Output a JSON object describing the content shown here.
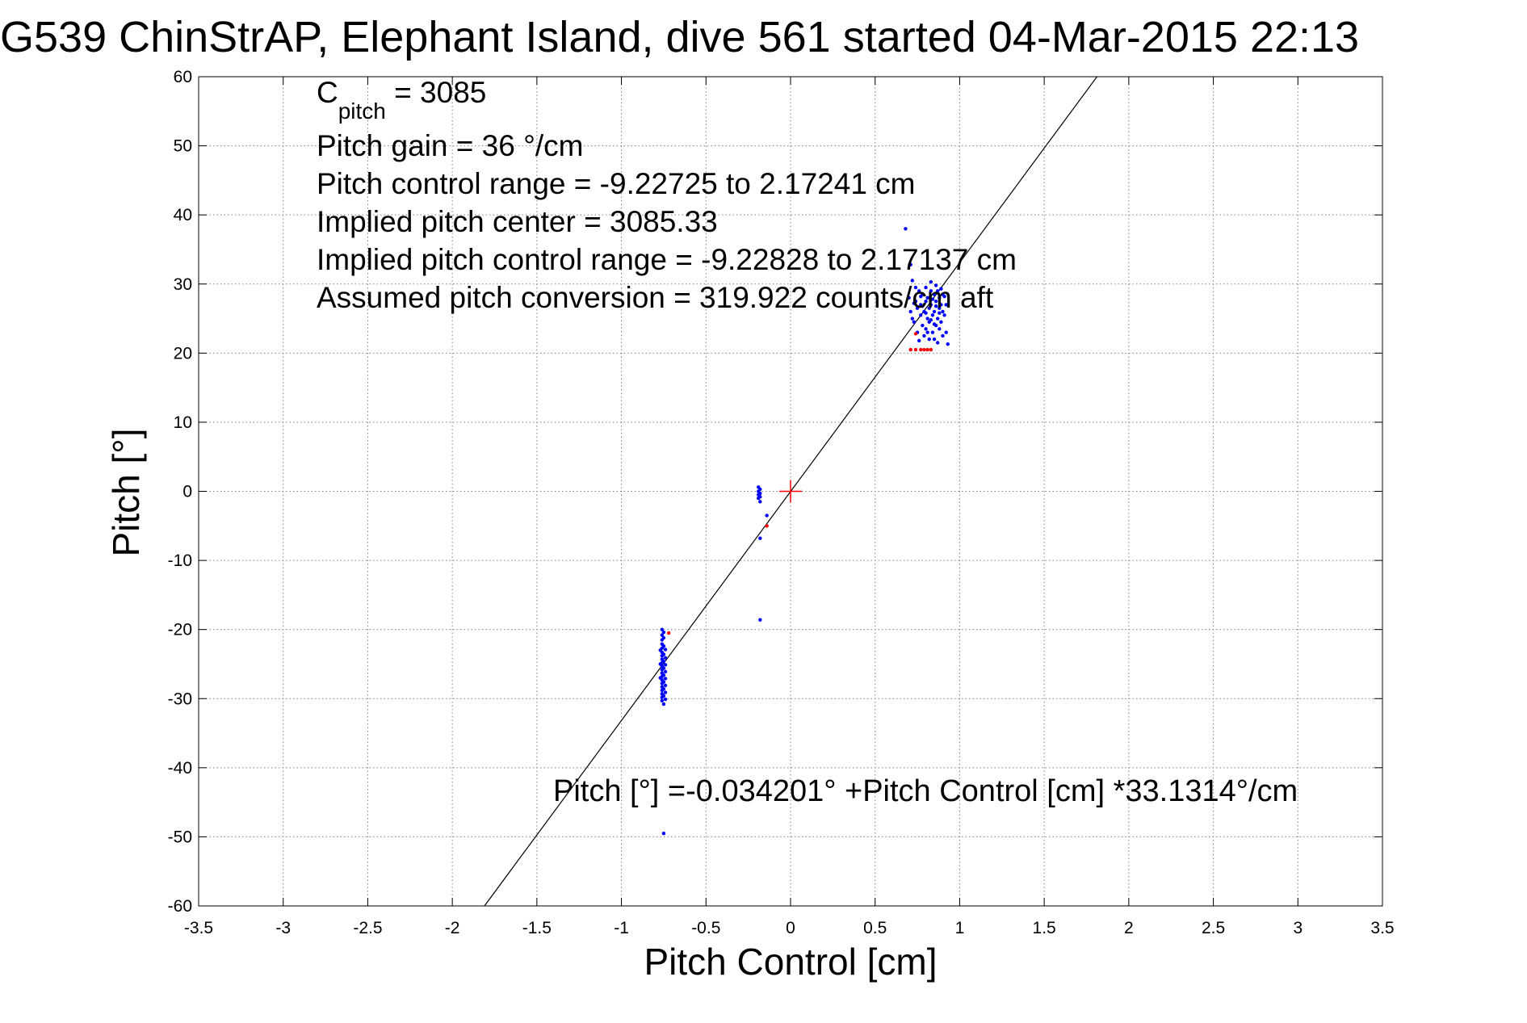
{
  "chart_data": {
    "type": "scatter",
    "title": "G539 ChinStrAP, Elephant Island, dive 561 started 04-Mar-2015 22:13",
    "xlabel": "Pitch Control [cm]",
    "ylabel": "Pitch [°]",
    "xlim": [
      -3.5,
      3.5
    ],
    "ylim": [
      -60,
      60
    ],
    "xticks": [
      -3.5,
      -3,
      -2.5,
      -2,
      -1.5,
      -1,
      -0.5,
      0,
      0.5,
      1,
      1.5,
      2,
      2.5,
      3,
      3.5
    ],
    "yticks": [
      -60,
      -50,
      -40,
      -30,
      -20,
      -10,
      0,
      10,
      20,
      30,
      40,
      50,
      60
    ],
    "grid": true,
    "annotations": {
      "c_pitch_main": "C",
      "c_pitch_sub": "pitch",
      "c_pitch_value": " = 3085",
      "pitch_gain": "Pitch gain = 36 °/cm",
      "control_range": "Pitch control range = -9.22725 to 2.17241 cm",
      "implied_center": "Implied pitch center = 3085.33",
      "implied_range": "Implied pitch control range = -9.22828 to 2.17137 cm",
      "conversion": "Assumed pitch conversion = 319.922 counts/cm aft",
      "fit_equation": "Pitch [°] =-0.034201° +Pitch Control [cm] *33.1314°/cm"
    },
    "fit_line": {
      "intercept": -0.034201,
      "slope": 33.1314,
      "color": "#000000"
    },
    "center_marker": {
      "x": 0,
      "y": 0,
      "color": "#ff0000"
    },
    "series": [
      {
        "color": "#0000ff",
        "points": [
          [
            -0.76,
            -20.0
          ],
          [
            -0.76,
            -20.8
          ],
          [
            -0.76,
            -21.5
          ],
          [
            -0.76,
            -22.1
          ],
          [
            -0.76,
            -22.7
          ],
          [
            -0.76,
            -23.3
          ],
          [
            -0.76,
            -23.8
          ],
          [
            -0.76,
            -24.3
          ],
          [
            -0.76,
            -24.8
          ],
          [
            -0.76,
            -25.3
          ],
          [
            -0.76,
            -25.8
          ],
          [
            -0.76,
            -26.3
          ],
          [
            -0.76,
            -26.8
          ],
          [
            -0.76,
            -27.3
          ],
          [
            -0.76,
            -27.8
          ],
          [
            -0.76,
            -28.3
          ],
          [
            -0.76,
            -28.8
          ],
          [
            -0.76,
            -29.3
          ],
          [
            -0.76,
            -29.8
          ],
          [
            -0.76,
            -30.3
          ],
          [
            -0.75,
            -30.8
          ],
          [
            -0.75,
            -20.4
          ],
          [
            -0.75,
            -21.2
          ],
          [
            -0.75,
            -22.4
          ],
          [
            -0.75,
            -23.6
          ],
          [
            -0.75,
            -24.6
          ],
          [
            -0.75,
            -25.6
          ],
          [
            -0.75,
            -26.6
          ],
          [
            -0.75,
            -27.6
          ],
          [
            -0.75,
            -28.6
          ],
          [
            -0.75,
            -29.6
          ],
          [
            -0.74,
            -22.9
          ],
          [
            -0.74,
            -24.1
          ],
          [
            -0.74,
            -25.1
          ],
          [
            -0.74,
            -26.1
          ],
          [
            -0.74,
            -27.1
          ],
          [
            -0.74,
            -28.1
          ],
          [
            -0.74,
            -29.1
          ],
          [
            -0.74,
            -30.1
          ],
          [
            -0.77,
            -23.0
          ],
          [
            -0.77,
            -25.0
          ],
          [
            -0.77,
            -27.0
          ],
          [
            -0.75,
            -49.5
          ],
          [
            -0.19,
            0.6
          ],
          [
            -0.19,
            0.0
          ],
          [
            -0.19,
            -0.5
          ],
          [
            -0.19,
            -1.0
          ],
          [
            -0.18,
            0.3
          ],
          [
            -0.18,
            -0.3
          ],
          [
            -0.18,
            -0.8
          ],
          [
            -0.18,
            -1.5
          ],
          [
            -0.14,
            -3.5
          ],
          [
            -0.18,
            -6.8
          ],
          [
            -0.18,
            -18.6
          ],
          [
            0.68,
            38.0
          ],
          [
            0.71,
            32.8
          ],
          [
            0.72,
            30.5
          ],
          [
            0.7,
            28.0
          ],
          [
            0.71,
            26.0
          ],
          [
            0.72,
            25.0
          ],
          [
            0.73,
            24.5
          ],
          [
            0.74,
            27.5
          ],
          [
            0.75,
            26.5
          ],
          [
            0.75,
            23.0
          ],
          [
            0.76,
            29.0
          ],
          [
            0.77,
            27.0
          ],
          [
            0.77,
            25.5
          ],
          [
            0.78,
            28.5
          ],
          [
            0.78,
            24.0
          ],
          [
            0.79,
            26.0
          ],
          [
            0.8,
            27.5
          ],
          [
            0.8,
            29.5
          ],
          [
            0.8,
            23.5
          ],
          [
            0.81,
            25.0
          ],
          [
            0.81,
            28.0
          ],
          [
            0.82,
            26.5
          ],
          [
            0.82,
            24.5
          ],
          [
            0.83,
            27.0
          ],
          [
            0.83,
            29.0
          ],
          [
            0.83,
            30.3
          ],
          [
            0.84,
            25.5
          ],
          [
            0.84,
            23.0
          ],
          [
            0.85,
            28.5
          ],
          [
            0.85,
            26.0
          ],
          [
            0.85,
            22.0
          ],
          [
            0.86,
            27.5
          ],
          [
            0.86,
            24.0
          ],
          [
            0.87,
            29.0
          ],
          [
            0.87,
            25.0
          ],
          [
            0.87,
            21.5
          ],
          [
            0.88,
            26.5
          ],
          [
            0.88,
            28.0
          ],
          [
            0.88,
            23.5
          ],
          [
            0.89,
            27.0
          ],
          [
            0.89,
            24.5
          ],
          [
            0.9,
            26.0
          ],
          [
            0.9,
            28.5
          ],
          [
            0.9,
            22.5
          ],
          [
            0.91,
            25.5
          ],
          [
            0.92,
            27.0
          ],
          [
            0.92,
            23.0
          ],
          [
            0.93,
            21.3
          ],
          [
            0.79,
            22.5
          ],
          [
            0.76,
            21.8
          ],
          [
            0.74,
            29.5
          ],
          [
            0.82,
            22.0
          ],
          [
            0.86,
            29.8
          ],
          [
            0.84,
            27.8
          ],
          [
            0.8,
            25.8
          ],
          [
            0.78,
            26.8
          ],
          [
            0.88,
            25.8
          ],
          [
            0.83,
            24.8
          ],
          [
            0.81,
            23.0
          ],
          [
            0.86,
            26.8
          ],
          [
            0.77,
            28.2
          ],
          [
            0.85,
            24.2
          ],
          [
            0.89,
            29.3
          ],
          [
            0.73,
            27.2
          ],
          [
            0.91,
            28.2
          ]
        ]
      },
      {
        "color": "#ff0000",
        "points": [
          [
            -0.72,
            -20.5
          ],
          [
            -0.14,
            -5.0
          ],
          [
            0.71,
            20.5
          ],
          [
            0.74,
            20.5
          ],
          [
            0.77,
            20.5
          ],
          [
            0.79,
            20.5
          ],
          [
            0.81,
            20.5
          ],
          [
            0.83,
            20.5
          ],
          [
            0.74,
            22.8
          ]
        ]
      }
    ]
  }
}
